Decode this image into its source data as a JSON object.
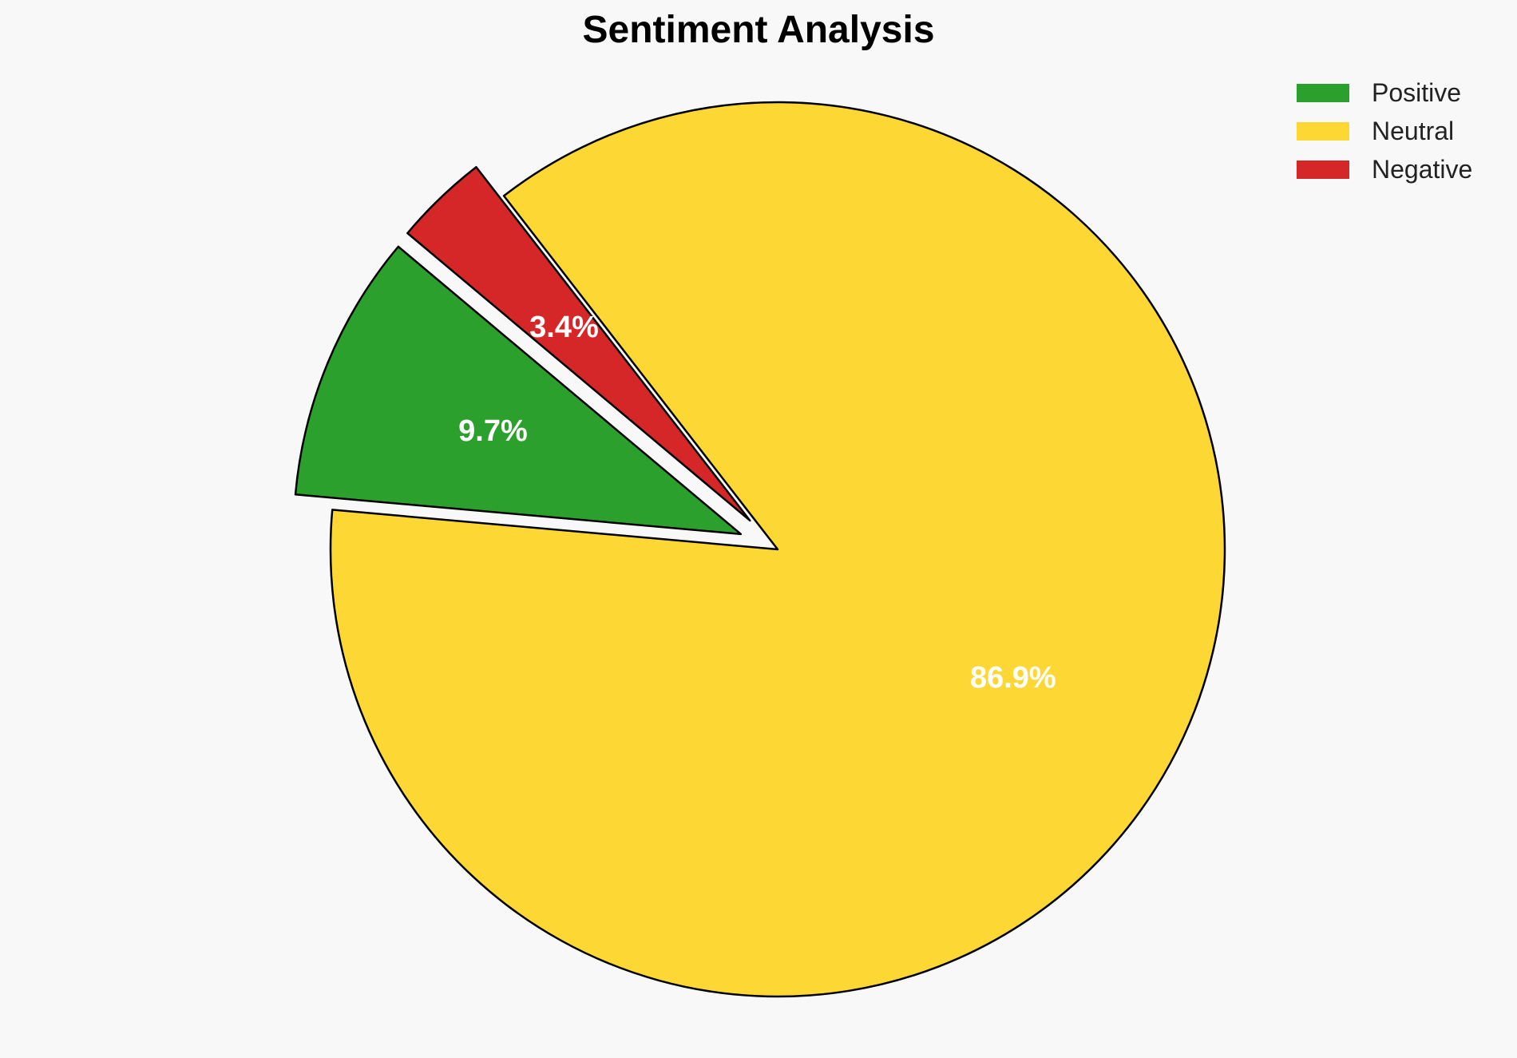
{
  "chart_data": {
    "type": "pie",
    "title": "Sentiment Analysis",
    "slices": [
      {
        "label": "Positive",
        "value": 9.7,
        "display": "9.7%",
        "color": "#2ca02c",
        "exploded": true
      },
      {
        "label": "Neutral",
        "value": 86.9,
        "display": "86.9%",
        "color": "#fdd835",
        "exploded": false
      },
      {
        "label": "Negative",
        "value": 3.4,
        "display": "3.4%",
        "color": "#d62728",
        "exploded": true
      }
    ],
    "legend": {
      "placement": "top-right",
      "entries": [
        "Positive",
        "Neutral",
        "Negative"
      ]
    },
    "start_angle_deg": 140,
    "direction": "counterclockwise"
  }
}
